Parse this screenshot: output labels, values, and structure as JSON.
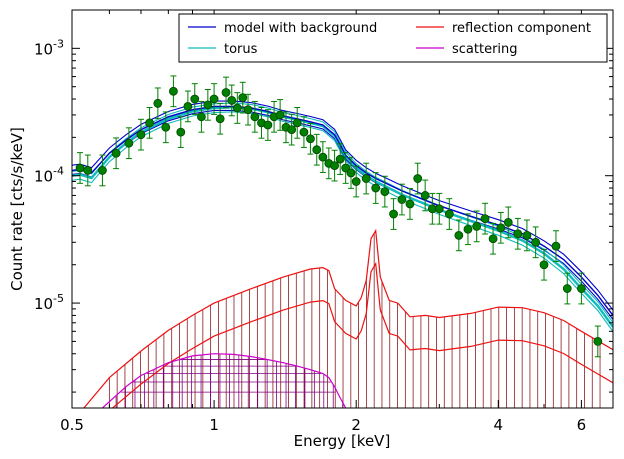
{
  "chart_data": {
    "type": "line",
    "xlabel": "Energy [keV]",
    "ylabel": "Count rate [cts/s/keV]",
    "xscale": "log",
    "yscale": "log",
    "xlim": [
      0.5,
      7.0
    ],
    "ylim": [
      1.5e-06,
      0.002
    ],
    "grid": false,
    "legend_position": "top-right",
    "xticks": [
      {
        "value": 0.5,
        "label": "0.5"
      },
      {
        "value": 1,
        "label": "1"
      },
      {
        "value": 2,
        "label": "2"
      },
      {
        "value": 4,
        "label": "4"
      },
      {
        "value": 6,
        "label": "6"
      }
    ],
    "yticks": [
      {
        "value": 1e-05,
        "mant": "10",
        "exp": "-5"
      },
      {
        "value": 0.0001,
        "mant": "10",
        "exp": "-4"
      },
      {
        "value": 0.001,
        "mant": "10",
        "exp": "-3"
      }
    ],
    "legend": [
      {
        "label": "model with background",
        "color": "#0000cc"
      },
      {
        "label": "reflection component",
        "color": "#ee1111"
      },
      {
        "label": "torus",
        "color": "#11bbbb"
      },
      {
        "label": "scattering",
        "color": "#cc00cc"
      }
    ],
    "series": [
      {
        "name": "model with background",
        "color": "#0000cc",
        "x": [
          0.5,
          0.52,
          0.55,
          0.6,
          0.65,
          0.7,
          0.8,
          0.9,
          1.0,
          1.1,
          1.2,
          1.3,
          1.4,
          1.5,
          1.6,
          1.7,
          1.8,
          1.85,
          1.9,
          2.0,
          2.1,
          2.2,
          2.3,
          2.5,
          2.8,
          3.0,
          3.5,
          4.0,
          4.5,
          5.0,
          5.5,
          6.0,
          6.5,
          7.0
        ],
        "y": [
          0.00011,
          0.000112,
          0.000105,
          0.00015,
          0.00019,
          0.00023,
          0.00029,
          0.00033,
          0.00035,
          0.00035,
          0.00034,
          0.00032,
          0.000295,
          0.00028,
          0.000265,
          0.00025,
          0.00021,
          0.000175,
          0.000145,
          0.00012,
          0.000105,
          9.5e-05,
          8.8e-05,
          7.6e-05,
          6.4e-05,
          5.8e-05,
          4.8e-05,
          4.1e-05,
          3.5e-05,
          2.8e-05,
          2.2e-05,
          1.6e-05,
          1.15e-05,
          8e-06
        ]
      },
      {
        "name": "torus",
        "color": "#11bbbb",
        "x": [
          0.5,
          0.52,
          0.55,
          0.6,
          0.65,
          0.7,
          0.8,
          0.9,
          1.0,
          1.1,
          1.2,
          1.3,
          1.4,
          1.5,
          1.6,
          1.7,
          1.8,
          1.85,
          1.9,
          2.0,
          2.1,
          2.2,
          2.3,
          2.5,
          2.8,
          3.0,
          3.5,
          4.0,
          4.5,
          5.0,
          5.5,
          6.0,
          6.5,
          7.0
        ],
        "y": [
          0.0001,
          0.000102,
          9.6e-05,
          0.00014,
          0.00018,
          0.00022,
          0.00028,
          0.00032,
          0.00034,
          0.000345,
          0.000335,
          0.000315,
          0.00029,
          0.000275,
          0.00026,
          0.000245,
          0.000205,
          0.00017,
          0.000142,
          0.000115,
          0.0001,
          9e-05,
          8.3e-05,
          7.1e-05,
          6e-05,
          5.4e-05,
          4.4e-05,
          3.7e-05,
          3.1e-05,
          2.45e-05,
          1.85e-05,
          1.3e-05,
          9.5e-06,
          6.5e-06
        ]
      },
      {
        "name": "reflection component",
        "color": "#ee1111",
        "x": [
          0.53,
          0.6,
          0.7,
          0.8,
          0.9,
          1.0,
          1.2,
          1.4,
          1.6,
          1.7,
          1.75,
          1.8,
          1.9,
          2.0,
          2.05,
          2.1,
          2.15,
          2.2,
          2.25,
          2.35,
          2.45,
          2.6,
          2.8,
          3.0,
          3.5,
          4.0,
          4.5,
          5.0,
          5.5,
          6.0,
          7.0
        ],
        "y": [
          1.5e-06,
          2.6e-06,
          4.2e-06,
          6.1e-06,
          8e-06,
          1e-05,
          1.3e-05,
          1.6e-05,
          1.85e-05,
          1.9e-05,
          1.8e-05,
          1.3e-05,
          1.05e-05,
          9.5e-06,
          1.1e-05,
          1.5e-05,
          3.2e-05,
          3.7e-05,
          1.6e-05,
          1.05e-05,
          1e-05,
          7.8e-06,
          8e-06,
          7.7e-06,
          8.3e-06,
          9.3e-06,
          9.2e-06,
          8.4e-06,
          7.3e-06,
          6e-06,
          4.3e-06
        ]
      },
      {
        "name": "scattering",
        "color": "#cc00cc",
        "x": [
          0.58,
          0.65,
          0.7,
          0.8,
          0.9,
          1.0,
          1.1,
          1.2,
          1.3,
          1.4,
          1.5,
          1.6,
          1.7,
          1.75,
          1.8,
          1.85,
          1.9
        ],
        "y": [
          1.5e-06,
          2.2e-06,
          2.7e-06,
          3.4e-06,
          3.85e-06,
          4e-06,
          3.95e-06,
          3.8e-06,
          3.6e-06,
          3.4e-06,
          3.2e-06,
          3e-06,
          2.8e-06,
          2.6e-06,
          2.2e-06,
          1.8e-06,
          1.5e-06
        ]
      }
    ],
    "data_points": {
      "color": "#008000",
      "x": [
        0.52,
        0.54,
        0.58,
        0.62,
        0.66,
        0.7,
        0.73,
        0.76,
        0.79,
        0.82,
        0.85,
        0.88,
        0.91,
        0.94,
        0.97,
        1.0,
        1.03,
        1.06,
        1.09,
        1.12,
        1.15,
        1.18,
        1.22,
        1.26,
        1.3,
        1.34,
        1.38,
        1.42,
        1.46,
        1.5,
        1.55,
        1.6,
        1.65,
        1.7,
        1.75,
        1.8,
        1.85,
        1.9,
        1.95,
        2.0,
        2.1,
        2.2,
        2.3,
        2.4,
        2.5,
        2.6,
        2.7,
        2.8,
        2.9,
        3.0,
        3.15,
        3.3,
        3.45,
        3.6,
        3.75,
        3.9,
        4.05,
        4.2,
        4.4,
        4.6,
        4.8,
        5.0,
        5.3,
        5.6,
        6.0,
        6.5
      ],
      "y": [
        0.000115,
        0.00011,
        0.00011,
        0.00015,
        0.00018,
        0.00021,
        0.00026,
        0.00037,
        0.00024,
        0.00046,
        0.00022,
        0.00035,
        0.0004,
        0.00029,
        0.00036,
        0.0004,
        0.00028,
        0.00045,
        0.00039,
        0.00034,
        0.00041,
        0.00033,
        0.00029,
        0.00026,
        0.00025,
        0.00029,
        0.0003,
        0.00024,
        0.00023,
        0.00026,
        0.00022,
        0.000195,
        0.00016,
        0.00014,
        0.000125,
        0.00012,
        0.000135,
        0.000115,
        0.000105,
        9e-05,
        9.5e-05,
        8e-05,
        7.5e-05,
        5e-05,
        6.5e-05,
        6e-05,
        9.5e-05,
        7e-05,
        5.5e-05,
        5.5e-05,
        5e-05,
        3.4e-05,
        3.8e-05,
        4e-05,
        4.6e-05,
        3.2e-05,
        3.9e-05,
        4.3e-05,
        3.5e-05,
        3.4e-05,
        3e-05,
        2e-05,
        2.8e-05,
        1.3e-05,
        1.3e-05,
        5e-06
      ]
    },
    "hatch_regions": {
      "reflection": {
        "color": "#8b1a1a",
        "x": [
          0.6,
          6.6
        ]
      },
      "scattering": {
        "color": "#800080",
        "x": [
          0.62,
          1.9
        ]
      }
    }
  }
}
